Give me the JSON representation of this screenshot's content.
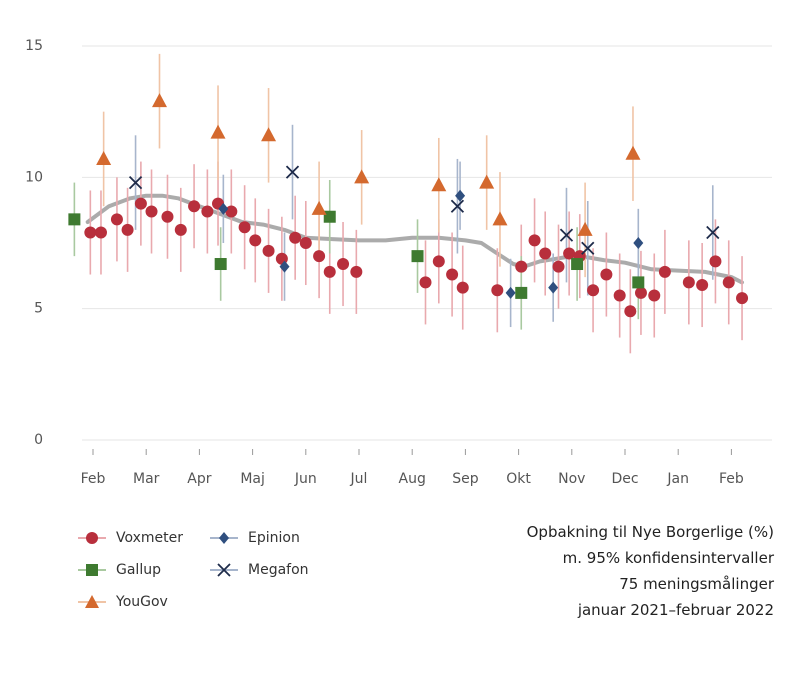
{
  "caption": {
    "line1": "Opbakning til Nye Borgerlige (%)",
    "line2": "m. 95% konfidensintervaller",
    "line3": "75 meningsmålinger",
    "line4": "januar 2021–februar 2022"
  },
  "legend": [
    {
      "name": "Voxmeter",
      "color": "#b82f3c",
      "marker": "circle"
    },
    {
      "name": "Epinion",
      "color": "#2f4f7f",
      "marker": "diamond"
    },
    {
      "name": "Gallup",
      "color": "#3e7a30",
      "marker": "square"
    },
    {
      "name": "Megafon",
      "color": "#1e2b4a",
      "marker": "x"
    },
    {
      "name": "YouGov",
      "color": "#d4692e",
      "marker": "triangle"
    }
  ],
  "chart_data": {
    "type": "scatter",
    "x_unit": "months since 1 Feb 2021",
    "xlim": [
      -0.3,
      12.3
    ],
    "ylim": [
      0,
      15
    ],
    "yticks": [
      0,
      5,
      10,
      15
    ],
    "xticks": [
      {
        "x": 0,
        "label": "Feb"
      },
      {
        "x": 1,
        "label": "Mar"
      },
      {
        "x": 2,
        "label": "Apr"
      },
      {
        "x": 3,
        "label": "Maj"
      },
      {
        "x": 4,
        "label": "Jun"
      },
      {
        "x": 5,
        "label": "Jul"
      },
      {
        "x": 6,
        "label": "Aug"
      },
      {
        "x": 7,
        "label": "Sep"
      },
      {
        "x": 8,
        "label": "Okt"
      },
      {
        "x": 9,
        "label": "Nov"
      },
      {
        "x": 10,
        "label": "Dec"
      },
      {
        "x": 11,
        "label": "Jan"
      },
      {
        "x": 12,
        "label": "Feb"
      }
    ],
    "grid": "horizontal",
    "series": [
      {
        "name": "Voxmeter",
        "points": [
          {
            "x": -0.05,
            "y": 7.9
          },
          {
            "x": 0.15,
            "y": 7.9
          },
          {
            "x": 0.45,
            "y": 8.4
          },
          {
            "x": 0.65,
            "y": 8.0
          },
          {
            "x": 0.9,
            "y": 9.0
          },
          {
            "x": 1.1,
            "y": 8.7
          },
          {
            "x": 1.4,
            "y": 8.5
          },
          {
            "x": 1.65,
            "y": 8.0
          },
          {
            "x": 1.9,
            "y": 8.9
          },
          {
            "x": 2.15,
            "y": 8.7
          },
          {
            "x": 2.35,
            "y": 9.0
          },
          {
            "x": 2.6,
            "y": 8.7
          },
          {
            "x": 2.85,
            "y": 8.1
          },
          {
            "x": 3.05,
            "y": 7.6
          },
          {
            "x": 3.3,
            "y": 7.2
          },
          {
            "x": 3.55,
            "y": 6.9
          },
          {
            "x": 3.8,
            "y": 7.7
          },
          {
            "x": 4.0,
            "y": 7.5
          },
          {
            "x": 4.25,
            "y": 7.0
          },
          {
            "x": 4.45,
            "y": 6.4
          },
          {
            "x": 4.7,
            "y": 6.7
          },
          {
            "x": 4.95,
            "y": 6.4
          },
          {
            "x": 6.25,
            "y": 6.0
          },
          {
            "x": 6.5,
            "y": 6.8
          },
          {
            "x": 6.75,
            "y": 6.3
          },
          {
            "x": 6.95,
            "y": 5.8
          },
          {
            "x": 7.6,
            "y": 5.7
          },
          {
            "x": 8.05,
            "y": 6.6
          },
          {
            "x": 8.3,
            "y": 7.6
          },
          {
            "x": 8.5,
            "y": 7.1
          },
          {
            "x": 8.75,
            "y": 6.6
          },
          {
            "x": 8.95,
            "y": 7.1
          },
          {
            "x": 9.15,
            "y": 7.0
          },
          {
            "x": 9.4,
            "y": 5.7
          },
          {
            "x": 9.65,
            "y": 6.3
          },
          {
            "x": 9.9,
            "y": 5.5
          },
          {
            "x": 10.1,
            "y": 4.9
          },
          {
            "x": 10.3,
            "y": 5.6
          },
          {
            "x": 10.55,
            "y": 5.5
          },
          {
            "x": 10.75,
            "y": 6.4
          },
          {
            "x": 11.2,
            "y": 6.0
          },
          {
            "x": 11.45,
            "y": 5.9
          },
          {
            "x": 11.7,
            "y": 6.8
          },
          {
            "x": 11.95,
            "y": 6.0
          },
          {
            "x": 12.2,
            "y": 5.4
          }
        ]
      },
      {
        "name": "Gallup",
        "points": [
          {
            "x": -0.35,
            "y": 8.4
          },
          {
            "x": 2.4,
            "y": 6.7
          },
          {
            "x": 4.45,
            "y": 8.5
          },
          {
            "x": 6.1,
            "y": 7.0
          },
          {
            "x": 8.05,
            "y": 5.6
          },
          {
            "x": 9.1,
            "y": 6.7
          },
          {
            "x": 10.25,
            "y": 6.0
          }
        ]
      },
      {
        "name": "YouGov",
        "points": [
          {
            "x": 0.2,
            "y": 10.7
          },
          {
            "x": 1.25,
            "y": 12.9
          },
          {
            "x": 2.35,
            "y": 11.7
          },
          {
            "x": 3.3,
            "y": 11.6
          },
          {
            "x": 4.25,
            "y": 8.8
          },
          {
            "x": 5.05,
            "y": 10.0
          },
          {
            "x": 6.5,
            "y": 9.7
          },
          {
            "x": 7.4,
            "y": 9.8
          },
          {
            "x": 7.65,
            "y": 8.4
          },
          {
            "x": 9.25,
            "y": 8.0
          },
          {
            "x": 10.15,
            "y": 10.9
          }
        ]
      },
      {
        "name": "Epinion",
        "points": [
          {
            "x": 2.45,
            "y": 8.8
          },
          {
            "x": 3.6,
            "y": 6.6
          },
          {
            "x": 6.9,
            "y": 9.3
          },
          {
            "x": 7.85,
            "y": 5.6
          },
          {
            "x": 8.65,
            "y": 5.8
          },
          {
            "x": 10.25,
            "y": 7.5
          }
        ]
      },
      {
        "name": "Megafon",
        "points": [
          {
            "x": 0.8,
            "y": 9.8
          },
          {
            "x": 3.75,
            "y": 10.2
          },
          {
            "x": 6.85,
            "y": 8.9
          },
          {
            "x": 8.9,
            "y": 7.8
          },
          {
            "x": 9.3,
            "y": 7.3
          },
          {
            "x": 11.65,
            "y": 7.9
          }
        ]
      }
    ],
    "trend": {
      "x": [
        -0.1,
        0.3,
        0.7,
        1.0,
        1.3,
        1.6,
        2.0,
        2.4,
        2.8,
        3.2,
        3.6,
        4.0,
        4.5,
        5.0,
        5.5,
        6.0,
        6.5,
        7.0,
        7.3,
        7.6,
        7.9,
        8.1,
        8.4,
        8.7,
        9.0,
        9.3,
        9.6,
        10.0,
        10.5,
        11.0,
        11.5,
        12.0,
        12.2
      ],
      "y": [
        8.3,
        8.9,
        9.2,
        9.3,
        9.3,
        9.2,
        8.9,
        8.6,
        8.3,
        8.2,
        8.0,
        7.7,
        7.65,
        7.6,
        7.6,
        7.7,
        7.7,
        7.6,
        7.5,
        7.1,
        6.7,
        6.6,
        6.8,
        6.9,
        7.0,
        6.95,
        6.85,
        6.75,
        6.5,
        6.45,
        6.4,
        6.2,
        6.0
      ]
    }
  }
}
